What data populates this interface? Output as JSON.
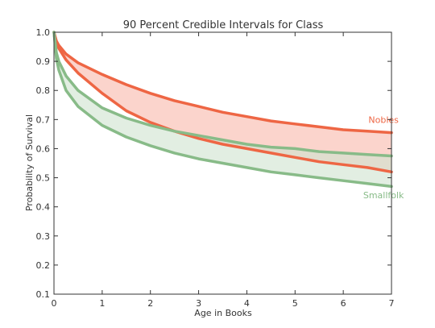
{
  "chart_data": {
    "type": "area",
    "title": "90 Percent Credible Intervals for Class",
    "xlabel": "Age in Books",
    "ylabel": "Probability of Survival",
    "xlim": [
      0,
      7
    ],
    "ylim": [
      0.1,
      1.0
    ],
    "xticks": [
      "0",
      "1",
      "2",
      "3",
      "4",
      "5",
      "6",
      "7"
    ],
    "yticks": [
      "0.1",
      "0.2",
      "0.3",
      "0.4",
      "0.5",
      "0.6",
      "0.7",
      "0.8",
      "0.9",
      "1.0"
    ],
    "grid": false,
    "x": [
      0,
      0.05,
      0.1,
      0.25,
      0.5,
      1,
      1.5,
      2,
      2.5,
      3,
      3.5,
      4,
      4.5,
      5,
      5.5,
      6,
      6.5,
      7
    ],
    "series": [
      {
        "name": "Nobles",
        "color": "#ee6644",
        "fill": "#f8b8aa",
        "upper": [
          1.0,
          0.97,
          0.955,
          0.925,
          0.895,
          0.855,
          0.82,
          0.79,
          0.765,
          0.745,
          0.725,
          0.71,
          0.695,
          0.685,
          0.675,
          0.665,
          0.66,
          0.655
        ],
        "lower": [
          1.0,
          0.96,
          0.945,
          0.905,
          0.86,
          0.79,
          0.73,
          0.69,
          0.66,
          0.635,
          0.615,
          0.6,
          0.585,
          0.57,
          0.555,
          0.545,
          0.535,
          0.52
        ]
      },
      {
        "name": "Smallfolk",
        "color": "#88bb88",
        "fill": "#cfe3cf",
        "upper": [
          1.0,
          0.93,
          0.9,
          0.85,
          0.8,
          0.74,
          0.705,
          0.68,
          0.66,
          0.645,
          0.63,
          0.615,
          0.605,
          0.6,
          0.59,
          0.585,
          0.58,
          0.575
        ],
        "lower": [
          1.0,
          0.91,
          0.87,
          0.8,
          0.745,
          0.68,
          0.64,
          0.61,
          0.585,
          0.565,
          0.55,
          0.535,
          0.52,
          0.51,
          0.5,
          0.49,
          0.48,
          0.47
        ]
      }
    ]
  }
}
